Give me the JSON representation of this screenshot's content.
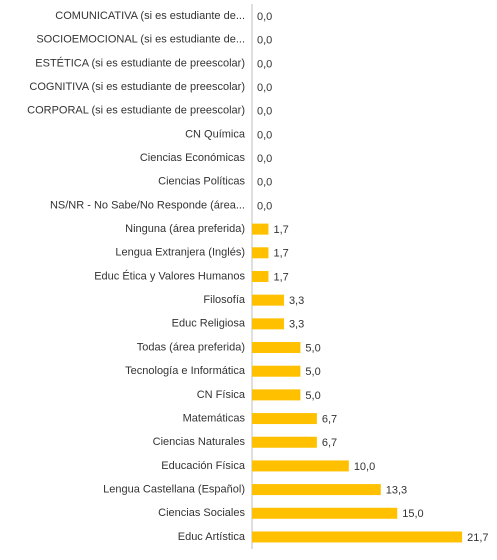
{
  "chart_data": {
    "type": "bar",
    "orientation": "horizontal",
    "color": "#ffc000",
    "categories": [
      "COMUNICATIVA (si es estudiante de...",
      "SOCIOEMOCIONAL (si es estudiante de...",
      "ESTÉTICA (si es estudiante de preescolar)",
      "COGNITIVA (si es estudiante de preescolar)",
      "CORPORAL (si es estudiante de preescolar)",
      "CN Química",
      "Ciencias Económicas",
      "Ciencias Políticas",
      "NS/NR - No Sabe/No Responde (área...",
      "Ninguna (área preferida)",
      "Lengua Extranjera (Inglés)",
      "Educ Ética y Valores Humanos",
      "Filosofía",
      "Educ Religiosa",
      "Todas (área preferida)",
      "Tecnología e Informática",
      "CN Física",
      "Matemáticas",
      "Ciencias Naturales",
      "Educación Física",
      "Lengua Castellana (Español)",
      "Ciencias Sociales",
      "Educ Artística"
    ],
    "values": [
      0,
      0,
      0,
      0,
      0,
      0,
      0,
      0,
      0,
      1.7,
      1.7,
      1.7,
      3.3,
      3.3,
      5.0,
      5.0,
      5.0,
      6.7,
      6.7,
      10.0,
      13.3,
      15.0,
      21.7
    ],
    "value_labels": [
      "0,0",
      "0,0",
      "0,0",
      "0,0",
      "0,0",
      "0,0",
      "0,0",
      "0,0",
      "0,0",
      "1,7",
      "1,7",
      "1,7",
      "3,3",
      "3,3",
      "5,0",
      "5,0",
      "5,0",
      "6,7",
      "6,7",
      "10,0",
      "13,3",
      "15,0",
      "21,7"
    ],
    "xlim": [
      0,
      22
    ]
  }
}
